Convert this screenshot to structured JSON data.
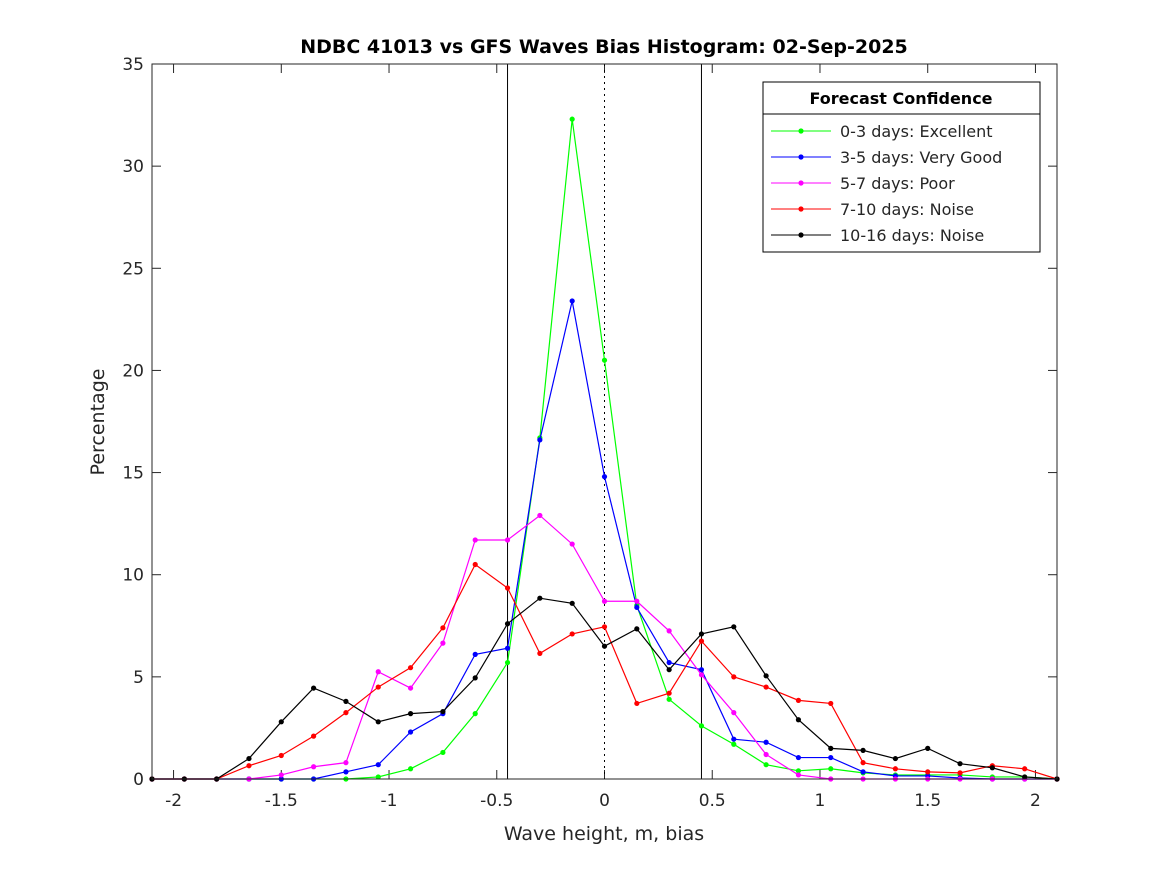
{
  "chart_data": {
    "type": "line",
    "title": "NDBC 41013 vs GFS Waves Bias Histogram: 02-Sep-2025",
    "xlabel": "Wave height, m, bias",
    "ylabel": "Percentage",
    "xlim": [
      -2.1,
      2.1
    ],
    "ylim": [
      0,
      35
    ],
    "xticks": [
      -2,
      -1.5,
      -1,
      -0.5,
      0,
      0.5,
      1,
      1.5,
      2
    ],
    "xtick_labels": [
      "-2",
      "-1.5",
      "-1",
      "-0.5",
      "0",
      "0.5",
      "1",
      "1.5",
      "2"
    ],
    "yticks": [
      0,
      5,
      10,
      15,
      20,
      25,
      30,
      35
    ],
    "ytick_labels": [
      "0",
      "5",
      "10",
      "15",
      "20",
      "25",
      "30",
      "35"
    ],
    "vlines_solid": [
      -0.45,
      0.45
    ],
    "vline_dotted": 0,
    "legend": {
      "title": "Forecast Confidence",
      "placement": "top-right"
    },
    "x": [
      -2.1,
      -1.95,
      -1.8,
      -1.65,
      -1.5,
      -1.35,
      -1.2,
      -1.05,
      -0.9,
      -0.75,
      -0.6,
      -0.45,
      -0.3,
      -0.15,
      0,
      0.15,
      0.3,
      0.45,
      0.6,
      0.75,
      0.9,
      1.05,
      1.2,
      1.35,
      1.5,
      1.65,
      1.8,
      1.95,
      2.1
    ],
    "series": [
      {
        "name": "0-3 days: Excellent",
        "color": "#00ff00",
        "values": [
          0,
          0,
          0,
          0,
          0,
          0,
          0,
          0.1,
          0.5,
          1.3,
          3.2,
          5.7,
          16.7,
          32.3,
          20.5,
          8.5,
          3.9,
          2.6,
          1.7,
          0.7,
          0.4,
          0.5,
          0.3,
          0.2,
          0.2,
          0.2,
          0.1,
          0.1,
          0
        ]
      },
      {
        "name": "3-5 days: Very Good",
        "color": "#0000ff",
        "values": [
          0,
          0,
          0,
          0,
          0,
          0,
          0.35,
          0.7,
          2.3,
          3.2,
          6.1,
          6.4,
          16.6,
          23.4,
          14.8,
          8.4,
          5.7,
          5.35,
          1.95,
          1.8,
          1.05,
          1.05,
          0.35,
          0.15,
          0.15,
          0.05,
          0,
          0,
          0
        ]
      },
      {
        "name": "5-7 days: Poor",
        "color": "#ff00ff",
        "values": [
          0,
          0,
          0,
          0,
          0.2,
          0.6,
          0.8,
          5.25,
          4.45,
          6.65,
          11.7,
          11.7,
          12.9,
          11.5,
          8.7,
          8.7,
          7.25,
          5.1,
          3.25,
          1.2,
          0.2,
          0,
          0,
          0,
          0,
          0,
          0,
          0,
          0
        ]
      },
      {
        "name": "7-10 days: Noise",
        "color": "#ff0000",
        "values": [
          0,
          0,
          0,
          0.65,
          1.15,
          2.1,
          3.25,
          4.5,
          5.45,
          7.4,
          10.5,
          9.35,
          6.15,
          7.1,
          7.45,
          3.7,
          4.2,
          6.75,
          5.0,
          4.5,
          3.85,
          3.7,
          0.8,
          0.5,
          0.35,
          0.3,
          0.65,
          0.5,
          0
        ]
      },
      {
        "name": "10-16 days: Noise",
        "color": "#000000",
        "values": [
          0,
          0,
          0,
          1.0,
          2.8,
          4.45,
          3.8,
          2.8,
          3.2,
          3.3,
          4.95,
          7.6,
          8.85,
          8.6,
          6.5,
          7.35,
          5.35,
          7.1,
          7.45,
          5.05,
          2.9,
          1.5,
          1.4,
          1.0,
          1.5,
          0.75,
          0.55,
          0.1,
          0
        ]
      }
    ]
  }
}
